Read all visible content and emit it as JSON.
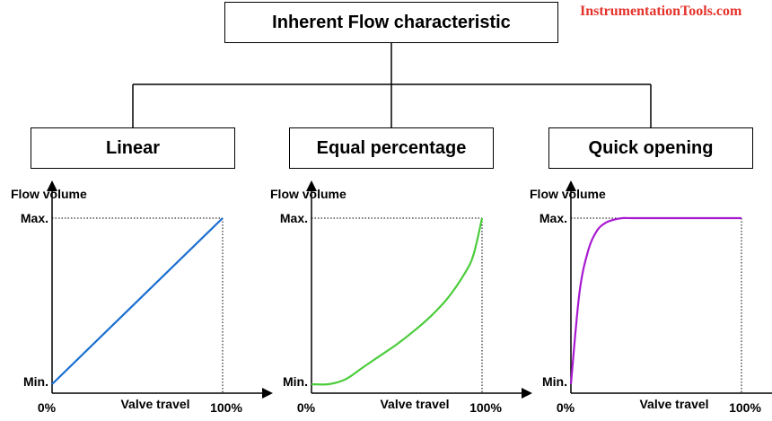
{
  "brand": "InstrumentationTools.com",
  "root_label": "Inherent Flow characteristic",
  "colors": {
    "linear": "#1a6fd0",
    "equal": "#4ccc3c",
    "quick": "#a81ad0"
  },
  "charts": [
    {
      "title": "Linear",
      "ylabel": "Flow volume",
      "xlabel": "Valve travel",
      "ymax_label": "Max.",
      "ymin_label": "Min.",
      "x0_label": "0%",
      "x1_label": "100%"
    },
    {
      "title": "Equal percentage",
      "ylabel": "Flow volume",
      "xlabel": "Valve travel",
      "ymax_label": "Max.",
      "ymin_label": "Min.",
      "x0_label": "0%",
      "x1_label": "100%"
    },
    {
      "title": "Quick opening",
      "ylabel": "Flow volume",
      "xlabel": "Valve travel",
      "ymax_label": "Max.",
      "ymin_label": "Min.",
      "x0_label": "0%",
      "x1_label": "100%"
    }
  ],
  "chart_data": [
    {
      "type": "line",
      "title": "Linear",
      "xlabel": "Valve travel",
      "ylabel": "Flow volume",
      "xlim": [
        0,
        100
      ],
      "ylim": [
        "Min.",
        "Max."
      ],
      "series": [
        {
          "color": "#1a6fd0",
          "x": [
            0,
            100
          ],
          "y": [
            0,
            1
          ]
        }
      ]
    },
    {
      "type": "line",
      "title": "Equal percentage",
      "xlabel": "Valve travel",
      "ylabel": "Flow volume",
      "xlim": [
        0,
        100
      ],
      "ylim": [
        "Min.",
        "Max."
      ],
      "series": [
        {
          "color": "#4ccc3c",
          "x": [
            0,
            10,
            20,
            30,
            40,
            50,
            60,
            70,
            80,
            90,
            95,
            100
          ],
          "y": [
            0,
            0,
            0.03,
            0.1,
            0.17,
            0.24,
            0.32,
            0.41,
            0.52,
            0.67,
            0.78,
            1
          ]
        }
      ]
    },
    {
      "type": "line",
      "title": "Quick opening",
      "xlabel": "Valve travel",
      "ylabel": "Flow volume",
      "xlim": [
        0,
        100
      ],
      "ylim": [
        "Min.",
        "Max."
      ],
      "series": [
        {
          "color": "#a81ad0",
          "x": [
            0,
            5,
            10,
            15,
            20,
            25,
            30,
            35,
            40,
            100
          ],
          "y": [
            0,
            0.55,
            0.8,
            0.92,
            0.97,
            0.99,
            1,
            1,
            1,
            1
          ]
        }
      ]
    }
  ]
}
